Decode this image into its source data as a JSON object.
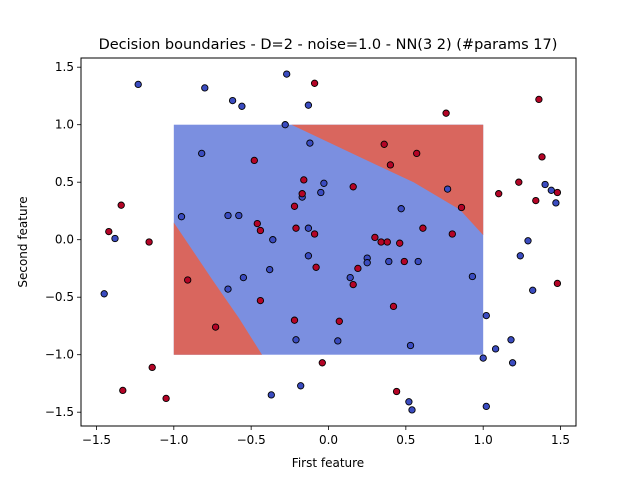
{
  "chart_data": {
    "type": "scatter",
    "title": "Decision boundaries - D=2 - noise=1.0 - NN(3 2) (#params 17)",
    "xlabel": "First feature",
    "ylabel": "Second feature",
    "xlim": [
      -1.6,
      1.6
    ],
    "ylim": [
      -1.62,
      1.58
    ],
    "xticks": [
      -1.5,
      -1.0,
      -0.5,
      0.0,
      0.5,
      1.0,
      1.5
    ],
    "yticks": [
      -1.5,
      -1.0,
      -0.5,
      0.0,
      0.5,
      1.0,
      1.5
    ],
    "xtick_labels": [
      "−1.5",
      "−1.0",
      "−0.5",
      "0.0",
      "0.5",
      "1.0",
      "1.5"
    ],
    "ytick_labels": [
      "−1.5",
      "−1.0",
      "−0.5",
      "0.0",
      "0.5",
      "1.0",
      "1.5"
    ],
    "grid": false,
    "colors": {
      "class0_point": "#3b4cc0",
      "class1_point": "#b40426",
      "region_blue": "#7b8fe0",
      "region_red": "#d9665e"
    },
    "decision_regions": {
      "extent": {
        "x": [
          -1.0,
          1.0
        ],
        "y": [
          -1.0,
          1.0
        ]
      },
      "background_class": "blue",
      "red_regions": [
        {
          "polygon": [
            [
              -0.24,
              1.0
            ],
            [
              1.0,
              1.0
            ],
            [
              1.0,
              0.04
            ],
            [
              0.85,
              0.26
            ],
            [
              0.55,
              0.5
            ],
            [
              0.2,
              0.72
            ]
          ]
        },
        {
          "polygon": [
            [
              -1.0,
              0.15
            ],
            [
              -0.9,
              -0.05
            ],
            [
              -0.75,
              -0.35
            ],
            [
              -0.58,
              -0.68
            ],
            [
              -0.43,
              -1.0
            ],
            [
              -1.0,
              -1.0
            ]
          ]
        }
      ]
    },
    "series": [
      {
        "class": 0,
        "points": [
          [
            -1.23,
            1.35
          ],
          [
            -0.8,
            1.32
          ],
          [
            -0.62,
            1.21
          ],
          [
            -0.56,
            1.16
          ],
          [
            -0.27,
            1.44
          ],
          [
            -0.13,
            1.17
          ],
          [
            -0.28,
            1.0
          ],
          [
            -0.12,
            0.84
          ],
          [
            -0.82,
            0.75
          ],
          [
            -0.95,
            0.2
          ],
          [
            -0.65,
            0.21
          ],
          [
            -0.58,
            0.21
          ],
          [
            -0.03,
            0.49
          ],
          [
            -0.05,
            0.41
          ],
          [
            -0.17,
            0.37
          ],
          [
            -0.36,
            0.0
          ],
          [
            -0.13,
            0.1
          ],
          [
            -0.13,
            -0.14
          ],
          [
            -0.38,
            -0.26
          ],
          [
            -0.55,
            -0.33
          ],
          [
            -0.65,
            -0.43
          ],
          [
            0.14,
            -0.33
          ],
          [
            0.25,
            -0.16
          ],
          [
            0.25,
            -0.2
          ],
          [
            0.39,
            -0.19
          ],
          [
            0.58,
            -0.19
          ],
          [
            0.47,
            0.27
          ],
          [
            0.77,
            0.44
          ],
          [
            0.93,
            -0.32
          ],
          [
            -0.21,
            -0.87
          ],
          [
            0.06,
            -0.88
          ],
          [
            0.53,
            -0.92
          ],
          [
            1.0,
            -1.03
          ],
          [
            1.08,
            -0.95
          ],
          [
            1.18,
            -0.87
          ],
          [
            1.19,
            -1.07
          ],
          [
            1.02,
            -0.66
          ],
          [
            1.32,
            -0.44
          ],
          [
            1.24,
            -0.14
          ],
          [
            1.29,
            -0.01
          ],
          [
            1.4,
            0.48
          ],
          [
            1.47,
            0.32
          ],
          [
            1.44,
            0.43
          ],
          [
            -1.45,
            -0.47
          ],
          [
            -1.38,
            0.01
          ],
          [
            -0.37,
            -1.35
          ],
          [
            -0.18,
            -1.27
          ],
          [
            0.52,
            -1.41
          ],
          [
            0.54,
            -1.48
          ],
          [
            1.02,
            -1.45
          ]
        ]
      },
      {
        "class": 1,
        "points": [
          [
            -0.09,
            1.36
          ],
          [
            0.76,
            1.1
          ],
          [
            1.36,
            1.22
          ],
          [
            1.38,
            0.72
          ],
          [
            0.36,
            0.83
          ],
          [
            0.57,
            0.75
          ],
          [
            0.4,
            0.65
          ],
          [
            -0.48,
            0.69
          ],
          [
            -0.16,
            0.52
          ],
          [
            0.16,
            0.46
          ],
          [
            -0.17,
            0.4
          ],
          [
            -0.22,
            0.29
          ],
          [
            1.1,
            0.4
          ],
          [
            1.23,
            0.5
          ],
          [
            1.34,
            0.34
          ],
          [
            1.48,
            0.41
          ],
          [
            0.86,
            0.28
          ],
          [
            0.8,
            0.05
          ],
          [
            0.61,
            0.1
          ],
          [
            -0.46,
            0.14
          ],
          [
            -0.44,
            0.08
          ],
          [
            -0.21,
            0.1
          ],
          [
            -0.09,
            0.05
          ],
          [
            0.3,
            0.02
          ],
          [
            0.34,
            -0.02
          ],
          [
            0.38,
            -0.02
          ],
          [
            0.46,
            -0.03
          ],
          [
            -1.16,
            -0.02
          ],
          [
            -1.42,
            0.07
          ],
          [
            -1.34,
            0.3
          ],
          [
            0.49,
            -0.19
          ],
          [
            0.19,
            -0.25
          ],
          [
            -0.08,
            -0.24
          ],
          [
            0.16,
            -0.39
          ],
          [
            -0.91,
            -0.35
          ],
          [
            -0.44,
            -0.53
          ],
          [
            -0.73,
            -0.76
          ],
          [
            -0.22,
            -0.7
          ],
          [
            0.07,
            -0.71
          ],
          [
            0.42,
            -0.58
          ],
          [
            1.48,
            -0.38
          ],
          [
            -0.04,
            -1.07
          ],
          [
            -1.14,
            -1.11
          ],
          [
            -1.33,
            -1.31
          ],
          [
            -1.05,
            -1.38
          ],
          [
            0.44,
            -1.32
          ]
        ]
      }
    ]
  }
}
